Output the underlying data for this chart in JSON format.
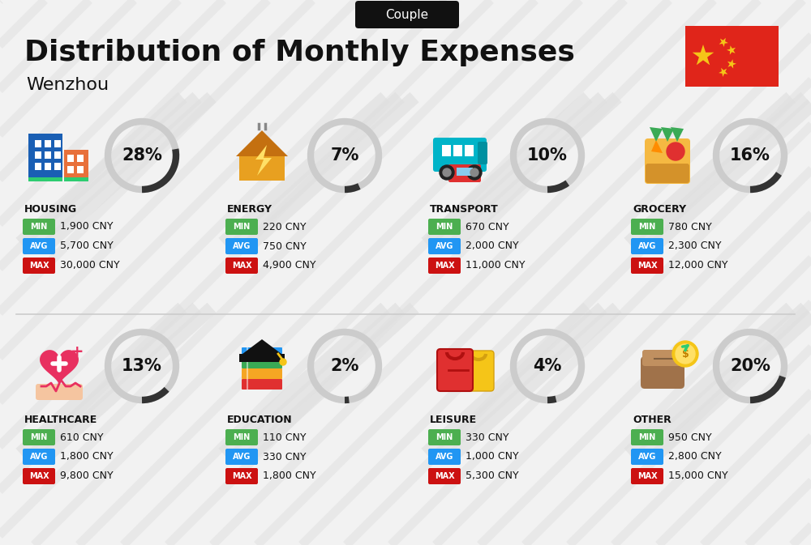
{
  "title": "Distribution of Monthly Expenses",
  "subtitle": "Couple",
  "city": "Wenzhou",
  "bg_color": "#f2f2f2",
  "categories": [
    {
      "name": "HOUSING",
      "pct": 28,
      "min": "1,900 CNY",
      "avg": "5,700 CNY",
      "max": "30,000 CNY",
      "icon": "housing",
      "row": 0,
      "col": 0
    },
    {
      "name": "ENERGY",
      "pct": 7,
      "min": "220 CNY",
      "avg": "750 CNY",
      "max": "4,900 CNY",
      "icon": "energy",
      "row": 0,
      "col": 1
    },
    {
      "name": "TRANSPORT",
      "pct": 10,
      "min": "670 CNY",
      "avg": "2,000 CNY",
      "max": "11,000 CNY",
      "icon": "transport",
      "row": 0,
      "col": 2
    },
    {
      "name": "GROCERY",
      "pct": 16,
      "min": "780 CNY",
      "avg": "2,300 CNY",
      "max": "12,000 CNY",
      "icon": "grocery",
      "row": 0,
      "col": 3
    },
    {
      "name": "HEALTHCARE",
      "pct": 13,
      "min": "610 CNY",
      "avg": "1,800 CNY",
      "max": "9,800 CNY",
      "icon": "healthcare",
      "row": 1,
      "col": 0
    },
    {
      "name": "EDUCATION",
      "pct": 2,
      "min": "110 CNY",
      "avg": "330 CNY",
      "max": "1,800 CNY",
      "icon": "education",
      "row": 1,
      "col": 1
    },
    {
      "name": "LEISURE",
      "pct": 4,
      "min": "330 CNY",
      "avg": "1,000 CNY",
      "max": "5,300 CNY",
      "icon": "leisure",
      "row": 1,
      "col": 2
    },
    {
      "name": "OTHER",
      "pct": 20,
      "min": "950 CNY",
      "avg": "2,800 CNY",
      "max": "15,000 CNY",
      "icon": "other",
      "row": 1,
      "col": 3
    }
  ],
  "color_min": "#4CAF50",
  "color_avg": "#2196F3",
  "color_max": "#cc1111",
  "arc_dark": "#333333",
  "arc_light": "#cccccc",
  "title_fontsize": 26,
  "subtitle_fontsize": 11,
  "city_fontsize": 16,
  "pct_fontsize": 15,
  "cat_fontsize": 9,
  "val_fontsize": 9,
  "lbl_fontsize": 7,
  "flag_red": "#e0251a",
  "flag_yellow": "#f5c518"
}
